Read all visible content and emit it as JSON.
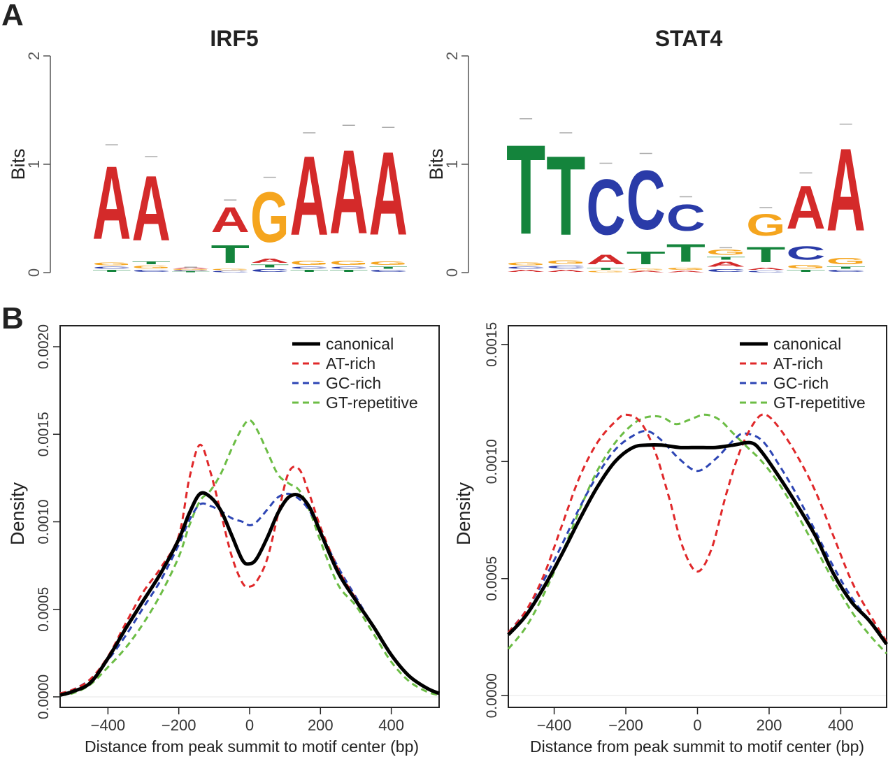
{
  "panels": {
    "a": "A",
    "b": "B"
  },
  "colors": {
    "A": "#d42a2a",
    "C": "#2a3ba8",
    "G": "#f5a51e",
    "T": "#14843c",
    "canonical": "#000000",
    "AT-rich": "#e0282a",
    "GC-rich": "#2d45b4",
    "GT-repetitive": "#6cbd45",
    "axis": "#555555",
    "grid": "#bfbfbf"
  },
  "chart_data": [
    {
      "type": "sequence-logo",
      "title": "IRF5",
      "ylabel": "Bits",
      "ylim": [
        0,
        2
      ],
      "yticks": [
        "0",
        "1",
        "2"
      ],
      "positions": [
        {
          "top": "A",
          "height": 1.18,
          "stack": [
            [
              "T",
              0.03
            ],
            [
              "C",
              0.03
            ],
            [
              "G",
              0.04
            ],
            [
              "A",
              1.08
            ]
          ]
        },
        {
          "top": "A",
          "height": 1.07,
          "stack": [
            [
              "C",
              0.03
            ],
            [
              "G",
              0.04
            ],
            [
              "T",
              0.04
            ],
            [
              "A",
              0.96
            ]
          ]
        },
        {
          "top": "A",
          "height": 0.05,
          "stack": [
            [
              "T",
              0.01
            ],
            [
              "C",
              0.01
            ],
            [
              "G",
              0.01
            ],
            [
              "A",
              0.02
            ]
          ]
        },
        {
          "top": "A",
          "height": 0.67,
          "stack": [
            [
              "C",
              0.02
            ],
            [
              "G",
              0.02
            ],
            [
              "T",
              0.26
            ],
            [
              "A",
              0.37
            ]
          ]
        },
        {
          "top": "G",
          "height": 0.88,
          "stack": [
            [
              "C",
              0.04
            ],
            [
              "T",
              0.04
            ],
            [
              "A",
              0.06
            ],
            [
              "G",
              0.74
            ]
          ]
        },
        {
          "top": "A",
          "height": 1.29,
          "stack": [
            [
              "T",
              0.03
            ],
            [
              "C",
              0.03
            ],
            [
              "G",
              0.06
            ],
            [
              "A",
              1.17
            ]
          ]
        },
        {
          "top": "A",
          "height": 1.36,
          "stack": [
            [
              "T",
              0.03
            ],
            [
              "C",
              0.03
            ],
            [
              "G",
              0.06
            ],
            [
              "A",
              1.24
            ]
          ]
        },
        {
          "top": "A",
          "height": 1.34,
          "stack": [
            [
              "C",
              0.03
            ],
            [
              "T",
              0.03
            ],
            [
              "G",
              0.05
            ],
            [
              "A",
              1.23
            ]
          ]
        }
      ]
    },
    {
      "type": "sequence-logo",
      "title": "STAT4",
      "ylabel": "Bits",
      "ylim": [
        0,
        2
      ],
      "yticks": [
        "0",
        "1",
        "2"
      ],
      "positions": [
        {
          "top": "T",
          "height": 1.42,
          "stack": [
            [
              "A",
              0.03
            ],
            [
              "C",
              0.03
            ],
            [
              "G",
              0.04
            ],
            [
              "T",
              1.32
            ]
          ]
        },
        {
          "top": "T",
          "height": 1.29,
          "stack": [
            [
              "A",
              0.03
            ],
            [
              "C",
              0.04
            ],
            [
              "G",
              0.05
            ],
            [
              "T",
              1.17
            ]
          ]
        },
        {
          "top": "C",
          "height": 1.01,
          "stack": [
            [
              "G",
              0.02
            ],
            [
              "T",
              0.03
            ],
            [
              "A",
              0.14
            ],
            [
              "C",
              0.82
            ]
          ]
        },
        {
          "top": "C",
          "height": 1.1,
          "stack": [
            [
              "A",
              0.02
            ],
            [
              "G",
              0.02
            ],
            [
              "T",
              0.19
            ],
            [
              "C",
              0.87
            ]
          ]
        },
        {
          "top": "C",
          "height": 0.7,
          "stack": [
            [
              "A",
              0.02
            ],
            [
              "G",
              0.03
            ],
            [
              "T",
              0.26
            ],
            [
              "C",
              0.39
            ]
          ]
        },
        {
          "top": "G",
          "height": 0.23,
          "stack": [
            [
              "C",
              0.04
            ],
            [
              "A",
              0.07
            ],
            [
              "T",
              0.04
            ],
            [
              "G",
              0.08
            ]
          ]
        },
        {
          "top": "G",
          "height": 0.6,
          "stack": [
            [
              "C",
              0.02
            ],
            [
              "A",
              0.03
            ],
            [
              "T",
              0.23
            ],
            [
              "G",
              0.32
            ]
          ]
        },
        {
          "top": "A",
          "height": 0.92,
          "stack": [
            [
              "T",
              0.03
            ],
            [
              "G",
              0.05
            ],
            [
              "C",
              0.2
            ],
            [
              "A",
              0.64
            ]
          ]
        },
        {
          "top": "A",
          "height": 1.37,
          "stack": [
            [
              "C",
              0.03
            ],
            [
              "T",
              0.03
            ],
            [
              "G",
              0.09
            ],
            [
              "A",
              1.22
            ]
          ]
        }
      ]
    },
    {
      "type": "line",
      "title": "",
      "xlabel": "Distance from peak summit to motif center (bp)",
      "ylabel": "Density",
      "xlim": [
        -535,
        535
      ],
      "ylim": [
        -6e-05,
        0.00212
      ],
      "xticks": [
        -400,
        -200,
        0,
        200,
        400
      ],
      "xtick_labels": [
        "−400",
        "−200",
        "0",
        "200",
        "400"
      ],
      "yticks": [
        0,
        0.0005,
        0.001,
        0.0015,
        0.002
      ],
      "ytick_labels": [
        "0.0000",
        "0.0005",
        "0.0010",
        "0.0015",
        "0.0020"
      ],
      "legend_position": "top-right",
      "series": [
        {
          "name": "canonical",
          "dash": "solid",
          "x": [
            -535,
            -500,
            -450,
            -400,
            -350,
            -300,
            -250,
            -200,
            -170,
            -140,
            -110,
            -80,
            -50,
            -20,
            0,
            20,
            50,
            80,
            110,
            140,
            170,
            200,
            250,
            300,
            350,
            400,
            450,
            500,
            535
          ],
          "y": [
            1e-05,
            3e-05,
            8e-05,
            0.00022,
            0.00039,
            0.00055,
            0.00071,
            0.0009,
            0.00105,
            0.00116,
            0.00114,
            0.00106,
            0.00092,
            0.00078,
            0.00076,
            0.00079,
            0.00091,
            0.00105,
            0.00114,
            0.00115,
            0.00108,
            0.00094,
            0.00071,
            0.00055,
            0.0004,
            0.00024,
            0.00012,
            5e-05,
            2e-05
          ]
        },
        {
          "name": "AT-rich",
          "dash": "dashed",
          "x": [
            -535,
            -500,
            -450,
            -400,
            -350,
            -300,
            -250,
            -200,
            -170,
            -140,
            -110,
            -80,
            -50,
            -20,
            0,
            20,
            50,
            80,
            110,
            140,
            170,
            200,
            250,
            300,
            350,
            400,
            450,
            500,
            535
          ],
          "y": [
            2e-05,
            4e-05,
            0.0001,
            0.00023,
            0.00042,
            0.0006,
            0.00074,
            0.00092,
            0.00125,
            0.00144,
            0.00128,
            0.00104,
            0.0008,
            0.00065,
            0.00063,
            0.00066,
            0.00079,
            0.00104,
            0.00128,
            0.0013,
            0.00115,
            0.00097,
            0.00073,
            0.00056,
            0.0004,
            0.00024,
            0.00012,
            5e-05,
            2e-05
          ]
        },
        {
          "name": "GC-rich",
          "dash": "dashed",
          "x": [
            -535,
            -500,
            -450,
            -400,
            -350,
            -300,
            -250,
            -200,
            -170,
            -140,
            -110,
            -80,
            -50,
            -20,
            0,
            20,
            50,
            80,
            110,
            140,
            170,
            200,
            250,
            300,
            350,
            400,
            450,
            500,
            535
          ],
          "y": [
            2e-05,
            4e-05,
            0.0001,
            0.00021,
            0.00035,
            0.00051,
            0.00067,
            0.00087,
            0.00101,
            0.0011,
            0.00109,
            0.00106,
            0.00102,
            0.001,
            0.00098,
            0.001,
            0.00107,
            0.00114,
            0.00116,
            0.00113,
            0.00106,
            0.00094,
            0.00074,
            0.00057,
            0.0004,
            0.00024,
            0.00012,
            5e-05,
            2e-05
          ]
        },
        {
          "name": "GT-repetitive",
          "dash": "dashed",
          "x": [
            -535,
            -500,
            -450,
            -400,
            -350,
            -300,
            -250,
            -200,
            -170,
            -140,
            -110,
            -80,
            -50,
            -20,
            0,
            20,
            50,
            80,
            110,
            140,
            170,
            200,
            250,
            300,
            350,
            400,
            450,
            500,
            535
          ],
          "y": [
            1e-05,
            2e-05,
            7e-05,
            0.00017,
            0.00028,
            0.00042,
            0.00059,
            0.0008,
            0.00098,
            0.00112,
            0.00118,
            0.00128,
            0.00142,
            0.00154,
            0.00158,
            0.00153,
            0.0014,
            0.00127,
            0.00122,
            0.00118,
            0.00106,
            0.00089,
            0.00064,
            0.00052,
            0.00036,
            0.0002,
            9e-05,
            3e-05,
            1e-05
          ]
        }
      ]
    },
    {
      "type": "line",
      "title": "",
      "xlabel": "Distance from peak summit to motif center (bp)",
      "ylabel": "Density",
      "xlim": [
        -528,
        528
      ],
      "ylim": [
        -5e-05,
        0.00158
      ],
      "xticks": [
        -400,
        -200,
        0,
        200,
        400
      ],
      "xtick_labels": [
        "−400",
        "−200",
        "0",
        "200",
        "400"
      ],
      "yticks": [
        0,
        0.0005,
        0.001,
        0.0015
      ],
      "ytick_labels": [
        "0.0000",
        "0.0005",
        "0.0010",
        "0.0015"
      ],
      "legend_position": "top-right",
      "series": [
        {
          "name": "canonical",
          "dash": "solid",
          "x": [
            -528,
            -480,
            -430,
            -380,
            -330,
            -280,
            -230,
            -180,
            -140,
            -100,
            -50,
            0,
            50,
            100,
            150,
            180,
            230,
            280,
            330,
            380,
            430,
            480,
            528
          ],
          "y": [
            0.00026,
            0.00034,
            0.00046,
            0.0006,
            0.00075,
            0.00089,
            0.001,
            0.00106,
            0.00107,
            0.00107,
            0.00106,
            0.00106,
            0.00106,
            0.00107,
            0.00108,
            0.00104,
            0.00093,
            0.00081,
            0.00068,
            0.00052,
            0.0004,
            0.00032,
            0.00022
          ]
        },
        {
          "name": "AT-rich",
          "dash": "dashed",
          "x": [
            -528,
            -480,
            -430,
            -380,
            -330,
            -280,
            -230,
            -200,
            -160,
            -120,
            -80,
            -40,
            0,
            40,
            80,
            120,
            160,
            190,
            230,
            280,
            330,
            380,
            430,
            480,
            528
          ],
          "y": [
            0.00027,
            0.00036,
            0.00051,
            0.00072,
            0.00093,
            0.00108,
            0.00117,
            0.0012,
            0.00117,
            0.00105,
            0.00085,
            0.00063,
            0.00053,
            0.00063,
            0.00086,
            0.00105,
            0.00117,
            0.0012,
            0.00114,
            0.00102,
            0.00087,
            0.00068,
            0.00049,
            0.00035,
            0.00023
          ]
        },
        {
          "name": "GC-rich",
          "dash": "dashed",
          "x": [
            -528,
            -480,
            -430,
            -380,
            -330,
            -280,
            -230,
            -180,
            -140,
            -100,
            -50,
            0,
            50,
            100,
            130,
            180,
            230,
            280,
            330,
            380,
            430,
            480,
            528
          ],
          "y": [
            0.00027,
            0.00036,
            0.00049,
            0.00064,
            0.0008,
            0.00094,
            0.00105,
            0.00111,
            0.00113,
            0.00109,
            0.00101,
            0.00096,
            0.00101,
            0.00109,
            0.00112,
            0.00109,
            0.00098,
            0.00085,
            0.0007,
            0.00055,
            0.00042,
            0.00032,
            0.00023
          ]
        },
        {
          "name": "GT-repetitive",
          "dash": "dashed",
          "x": [
            -528,
            -480,
            -430,
            -380,
            -330,
            -280,
            -230,
            -180,
            -140,
            -100,
            -60,
            -20,
            20,
            60,
            100,
            140,
            180,
            230,
            280,
            330,
            380,
            430,
            480,
            528
          ],
          "y": [
            0.0002,
            0.00029,
            0.00043,
            0.0006,
            0.00079,
            0.00096,
            0.00108,
            0.00116,
            0.00119,
            0.00119,
            0.00116,
            0.00118,
            0.0012,
            0.00118,
            0.00112,
            0.00106,
            0.001,
            0.0009,
            0.00077,
            0.00063,
            0.00049,
            0.00036,
            0.00026,
            0.00018
          ]
        }
      ]
    }
  ]
}
